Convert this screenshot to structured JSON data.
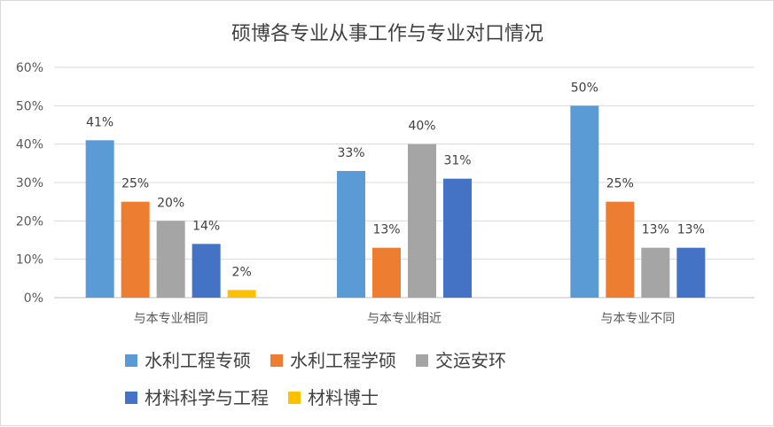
{
  "chart_data": {
    "type": "bar",
    "title": "硕博各专业从事工作与专业对口情况",
    "categories": [
      "与本专业相同",
      "与本专业相近",
      "与本专业不同"
    ],
    "yticks": [
      "0%",
      "10%",
      "20%",
      "30%",
      "40%",
      "50%",
      "60%"
    ],
    "ylim": [
      0,
      60
    ],
    "grid": true,
    "legend_position": "bottom",
    "series": [
      {
        "name": "水利工程专硕",
        "color": "#5b9bd5",
        "values": [
          41,
          33,
          50
        ],
        "labels": [
          "41%",
          "33%",
          "50%"
        ]
      },
      {
        "name": "水利工程学硕",
        "color": "#ed7d31",
        "values": [
          25,
          13,
          25
        ],
        "labels": [
          "25%",
          "13%",
          "25%"
        ]
      },
      {
        "name": "交运安环",
        "color": "#a5a5a5",
        "values": [
          20,
          40,
          13
        ],
        "labels": [
          "20%",
          "40%",
          "13%"
        ]
      },
      {
        "name": "材料科学与工程",
        "color": "#4472c4",
        "values": [
          14,
          31,
          13
        ],
        "labels": [
          "14%",
          "31%",
          "13%"
        ]
      },
      {
        "name": "材料博士",
        "color": "#ffc000",
        "values": [
          2,
          null,
          null
        ],
        "labels": [
          "2%",
          null,
          null
        ]
      }
    ]
  }
}
